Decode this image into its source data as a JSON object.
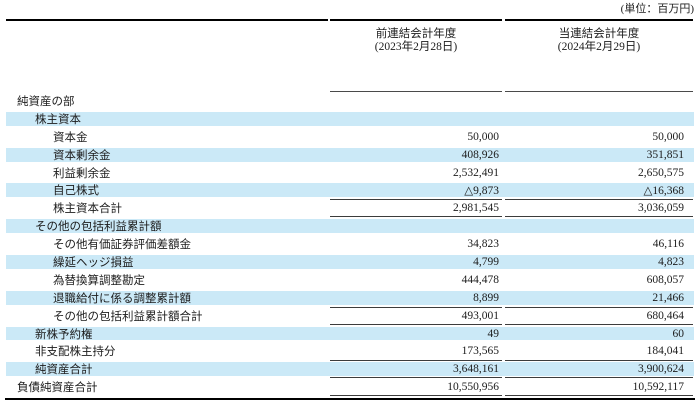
{
  "unit_label": "(単位：百万円)",
  "header": {
    "prev_period": {
      "title": "前連結会計年度",
      "date": "(2023年2月28日)"
    },
    "curr_period": {
      "title": "当連結会計年度",
      "date": "(2024年2月29日)"
    }
  },
  "colors": {
    "row_highlight": "#cbe9f7",
    "rule_thin": "#3c3c3c",
    "rule_thick": "#000000"
  },
  "table": {
    "rows": [
      {
        "label": "純資産の部",
        "indent": 0,
        "shaded": false,
        "values": [
          "",
          ""
        ]
      },
      {
        "label": "株主資本",
        "indent": 1,
        "shaded": true,
        "values": [
          "",
          ""
        ]
      },
      {
        "label": "資本金",
        "indent": 2,
        "shaded": false,
        "values": [
          "50,000",
          "50,000"
        ]
      },
      {
        "label": "資本剰余金",
        "indent": 2,
        "shaded": true,
        "values": [
          "408,926",
          "351,851"
        ]
      },
      {
        "label": "利益剰余金",
        "indent": 2,
        "shaded": false,
        "values": [
          "2,532,491",
          "2,650,575"
        ]
      },
      {
        "label": "自己株式",
        "indent": 2,
        "shaded": true,
        "values": [
          "△9,873",
          "△16,368"
        ]
      },
      {
        "label": "株主資本合計",
        "indent": 2,
        "shaded": false,
        "values": [
          "2,981,545",
          "3,036,059"
        ],
        "rule_top": true,
        "rule_bottom": true
      },
      {
        "label": "その他の包括利益累計額",
        "indent": 1,
        "shaded": true,
        "values": [
          "",
          ""
        ]
      },
      {
        "label": "その他有価証券評価差額金",
        "indent": 2,
        "shaded": false,
        "values": [
          "34,823",
          "46,116"
        ]
      },
      {
        "label": "繰延ヘッジ損益",
        "indent": 2,
        "shaded": true,
        "values": [
          "4,799",
          "4,823"
        ]
      },
      {
        "label": "為替換算調整勘定",
        "indent": 2,
        "shaded": false,
        "values": [
          "444,478",
          "608,057"
        ]
      },
      {
        "label": "退職給付に係る調整累計額",
        "indent": 2,
        "shaded": true,
        "values": [
          "8,899",
          "21,466"
        ]
      },
      {
        "label": "その他の包括利益累計額合計",
        "indent": 2,
        "shaded": false,
        "values": [
          "493,001",
          "680,464"
        ],
        "rule_top": true,
        "rule_bottom": true
      },
      {
        "label": "新株予約権",
        "indent": 1,
        "shaded": true,
        "values": [
          "49",
          "60"
        ]
      },
      {
        "label": "非支配株主持分",
        "indent": 1,
        "shaded": false,
        "values": [
          "173,565",
          "184,041"
        ]
      },
      {
        "label": "純資産合計",
        "indent": 1,
        "shaded": true,
        "values": [
          "3,648,161",
          "3,900,624"
        ],
        "rule_top": true,
        "rule_bottom": true
      },
      {
        "label": "負債純資産合計",
        "indent": 0,
        "shaded": false,
        "values": [
          "10,550,956",
          "10,592,117"
        ],
        "rule_bottom": true
      }
    ]
  }
}
